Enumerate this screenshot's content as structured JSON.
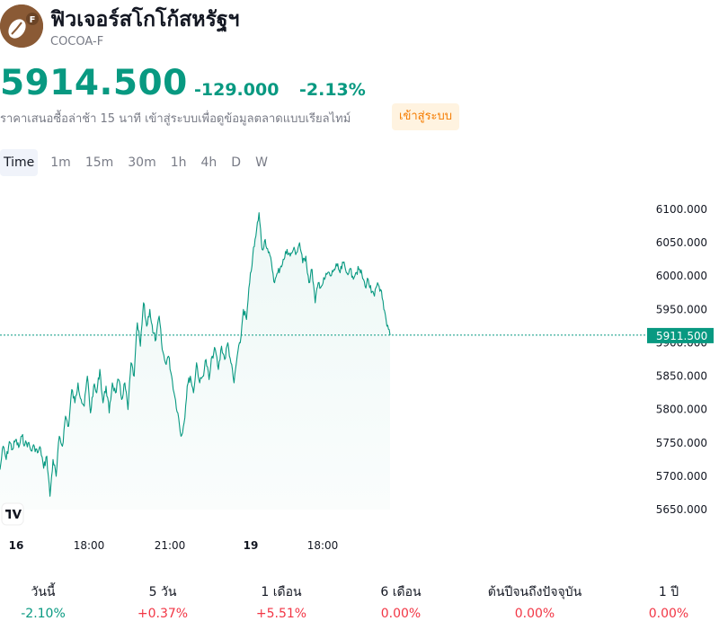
{
  "header": {
    "name": "ฟิวเจอร์สโกโก้สหรัฐฯ",
    "symbol": "COCOA-F",
    "logo_badge": "F"
  },
  "quote": {
    "price": "5914.500",
    "change": "-129.000",
    "change_pct": "-2.13%",
    "color": "#089981"
  },
  "delay_notice": "ราคาเสนอซื้อล่าช้า 15 นาที เข้าสู่ระบบเพื่อดูข้อมูลตลาดแบบเรียลไทม์",
  "login_label": "เข้าสู่ระบบ",
  "timeframes": [
    {
      "label": "Time",
      "active": true
    },
    {
      "label": "1m"
    },
    {
      "label": "15m"
    },
    {
      "label": "30m"
    },
    {
      "label": "1h"
    },
    {
      "label": "4h"
    },
    {
      "label": "D"
    },
    {
      "label": "W"
    }
  ],
  "chart_data": {
    "type": "area",
    "y_ticks": [
      "6100.000",
      "6050.000",
      "6000.000",
      "5950.000",
      "5900.000",
      "5850.000",
      "5800.000",
      "5750.000",
      "5700.000",
      "5650.000"
    ],
    "ylim": [
      5650,
      6100
    ],
    "x_ticks": [
      {
        "label": "16",
        "bold": true
      },
      {
        "label": "18:00"
      },
      {
        "label": "21:00"
      },
      {
        "label": "19",
        "bold": true
      },
      {
        "label": "18:00"
      }
    ],
    "last_price_label": "5911.500",
    "last_price": 5911.5,
    "line_color": "#089981",
    "series": [
      {
        "values": [
          5710,
          5745,
          5725,
          5752,
          5740,
          5755,
          5743,
          5760,
          5748,
          5750,
          5738,
          5745,
          5735,
          5742,
          5712,
          5730,
          5670,
          5725,
          5700,
          5760,
          5745,
          5790,
          5775,
          5830,
          5810,
          5840,
          5815,
          5805,
          5850,
          5795,
          5835,
          5825,
          5860,
          5810,
          5835,
          5795,
          5840,
          5825,
          5845,
          5815,
          5840,
          5800,
          5870,
          5850,
          5930,
          5895,
          5960,
          5925,
          5950,
          5915,
          5905,
          5940,
          5890,
          5870,
          5880,
          5850,
          5820,
          5795,
          5760,
          5780,
          5835,
          5850,
          5825,
          5870,
          5840,
          5850,
          5875,
          5845,
          5880,
          5890,
          5860,
          5895,
          5875,
          5900,
          5870,
          5840,
          5880,
          5900,
          5950,
          5935,
          5990,
          6030,
          6060,
          6095,
          6040,
          6055,
          6035,
          6020,
          5990,
          6005,
          6015,
          6025,
          6040,
          6030,
          6040,
          6035,
          6050,
          6020,
          6030,
          5990,
          6010,
          5960,
          5990,
          5985,
          5995,
          6005,
          6000,
          6010,
          6015,
          6005,
          6020,
          6005,
          6010,
          6000,
          6005,
          6010,
          6002,
          5985,
          5995,
          5975,
          5970,
          5990,
          5980,
          5950,
          5925,
          5911.5
        ],
        "last_idx_fraction": 1
      }
    ]
  },
  "performance": [
    {
      "label": "วันนี้",
      "value": "-2.10%",
      "trend": "pos"
    },
    {
      "label": "5 วัน",
      "value": "+0.37%",
      "trend": "neg"
    },
    {
      "label": "1 เดือน",
      "value": "+5.51%",
      "trend": "neg"
    },
    {
      "label": "6 เดือน",
      "value": "0.00%",
      "trend": "neg"
    },
    {
      "label": "ต้นปีจนถึงปัจจุบัน",
      "value": "0.00%",
      "trend": "neg"
    },
    {
      "label": "1 ปี",
      "value": "0.00%",
      "trend": "neg"
    }
  ]
}
